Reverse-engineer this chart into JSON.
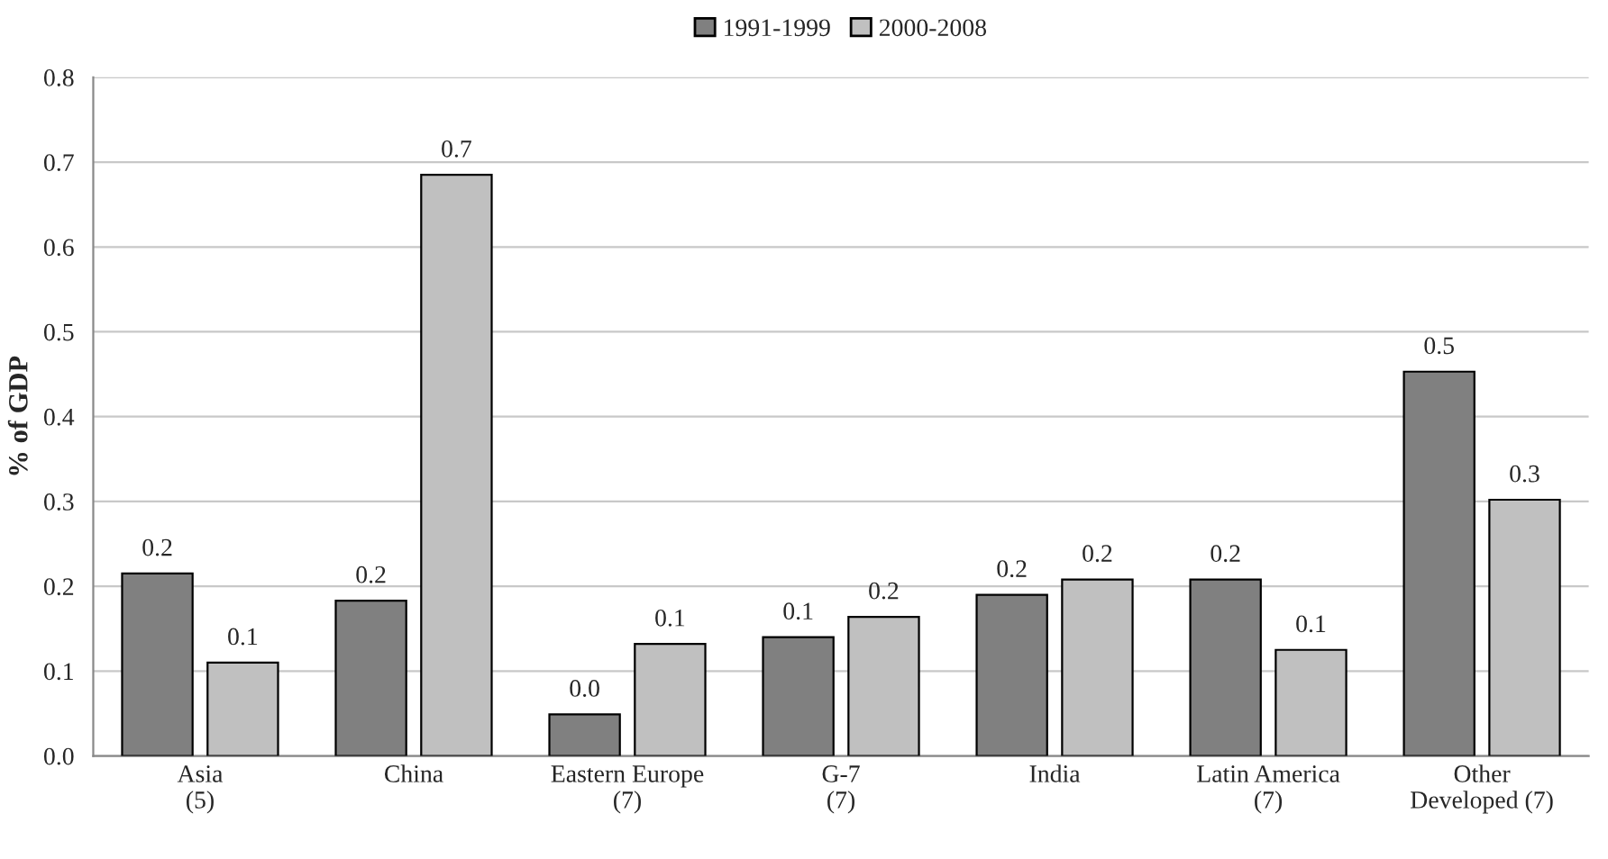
{
  "chart_data": {
    "type": "bar",
    "ylabel": "% of GDP",
    "categories": [
      "Asia\n(5)",
      "China",
      "Eastern Europe\n(7)",
      "G-7\n(7)",
      "India",
      "Latin America\n(7)",
      "Other\nDeveloped (7)"
    ],
    "series": [
      {
        "name": "1991-1999",
        "color": "#808080",
        "values": [
          0.215,
          0.183,
          0.049,
          0.14,
          0.19,
          0.208,
          0.453
        ],
        "value_labels": [
          "0.2",
          "0.2",
          "0.0",
          "0.1",
          "0.2",
          "0.2",
          "0.5"
        ]
      },
      {
        "name": "2000-2008",
        "color": "#c0c0c0",
        "values": [
          0.11,
          0.685,
          0.132,
          0.164,
          0.208,
          0.125,
          0.302
        ],
        "value_labels": [
          "0.1",
          "0.7",
          "0.1",
          "0.2",
          "0.2",
          "0.1",
          "0.3"
        ]
      }
    ],
    "ylim": [
      0,
      0.8
    ],
    "yticks": [
      {
        "value": 0,
        "label": "0.0"
      },
      {
        "value": 0.1,
        "label": "0.1"
      },
      {
        "value": 0.2,
        "label": "0.2"
      },
      {
        "value": 0.3,
        "label": "0.3"
      },
      {
        "value": 0.4,
        "label": "0.4"
      },
      {
        "value": 0.5,
        "label": "0.5"
      },
      {
        "value": 0.6,
        "label": "0.6"
      },
      {
        "value": 0.7,
        "label": "0.7"
      },
      {
        "value": 0.8,
        "label": "0.8"
      }
    ],
    "grid": "y",
    "legend": "top"
  }
}
